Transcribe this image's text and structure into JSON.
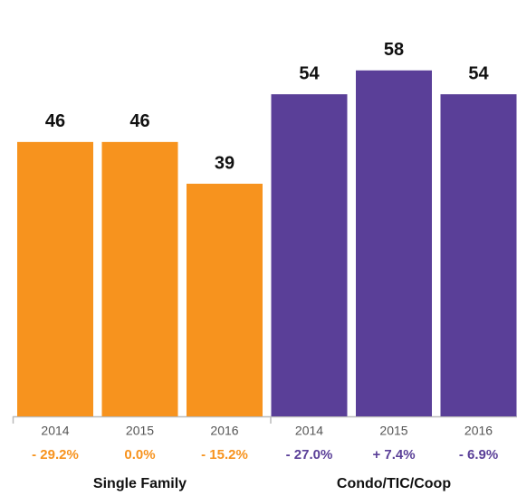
{
  "chart_data": {
    "type": "bar",
    "series": [
      {
        "name": "Single Family",
        "color": "#f7931e",
        "categories": [
          "2014",
          "2015",
          "2016"
        ],
        "values": [
          46,
          46,
          39
        ],
        "change_labels": [
          "- 29.2%",
          "0.0%",
          "- 15.2%"
        ]
      },
      {
        "name": "Condo/TIC/Coop",
        "color": "#5a3f98",
        "categories": [
          "2014",
          "2015",
          "2016"
        ],
        "values": [
          54,
          58,
          54
        ],
        "change_labels": [
          "- 27.0%",
          "+ 7.4%",
          "- 6.9%"
        ]
      }
    ]
  }
}
